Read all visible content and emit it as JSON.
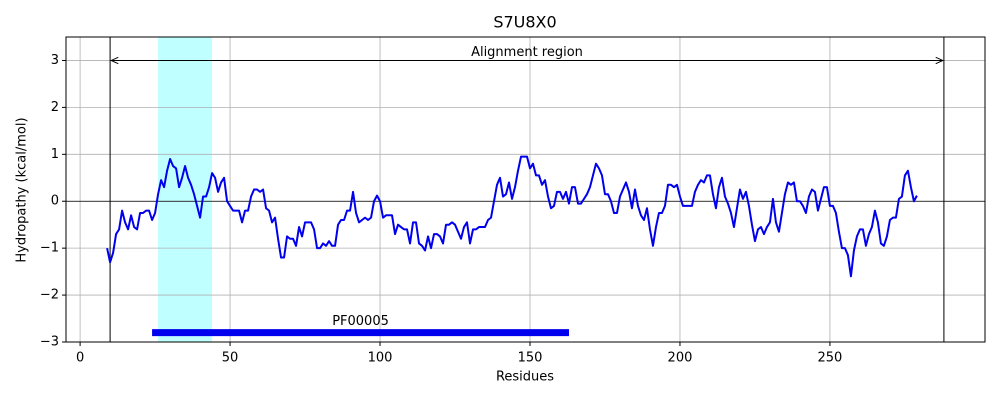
{
  "chart_data": {
    "type": "line",
    "title": "S7U8X0",
    "xlabel": "Residues",
    "ylabel": "Hydropathy (kcal/mol)",
    "xlim": [
      -4.7,
      301.7
    ],
    "ylim": [
      -3,
      3.5
    ],
    "xticks": [
      0,
      50,
      100,
      150,
      200,
      250
    ],
    "yticks": [
      {
        "value": -3,
        "label": "−3"
      },
      {
        "value": -2,
        "label": "−2"
      },
      {
        "value": -1,
        "label": "−1"
      },
      0,
      1,
      2,
      3
    ],
    "grid": true,
    "hline": 0,
    "vlines": [
      10,
      288
    ],
    "span": {
      "start": 26,
      "end": 44,
      "color": "#c0ffff"
    },
    "domain": {
      "label": "PF00005",
      "start": 24,
      "end": 163,
      "y": -2.8,
      "color": "#0000ee"
    },
    "annotation": {
      "text": "Alignment region",
      "start": 10,
      "end": 288,
      "y": 3
    },
    "series": [
      {
        "color": "#0000ee",
        "x": [
          9,
          10,
          11,
          12,
          13,
          14,
          15,
          16,
          17,
          18,
          19,
          20,
          21,
          22,
          23,
          24,
          25,
          26,
          27,
          28,
          29,
          30,
          31,
          32,
          33,
          34,
          35,
          36,
          37,
          38,
          39,
          40,
          41,
          42,
          43,
          44,
          45,
          46,
          47,
          48,
          49,
          50,
          51,
          52,
          53,
          54,
          55,
          56,
          57,
          58,
          59,
          60,
          61,
          62,
          63,
          64,
          65,
          66,
          67,
          68,
          69,
          70,
          71,
          72,
          73,
          74,
          75,
          76,
          77,
          78,
          79,
          80,
          81,
          82,
          83,
          84,
          85,
          86,
          87,
          88,
          89,
          90,
          91,
          92,
          93,
          94,
          95,
          96,
          97,
          98,
          99,
          100,
          101,
          102,
          103,
          104,
          105,
          106,
          107,
          108,
          109,
          110,
          111,
          112,
          113,
          114,
          115,
          116,
          117,
          118,
          119,
          120,
          121,
          122,
          123,
          124,
          125,
          126,
          127,
          128,
          129,
          130,
          131,
          132,
          133,
          134,
          135,
          136,
          137,
          138,
          139,
          140,
          141,
          142,
          143,
          144,
          145,
          146,
          147,
          148,
          149,
          150,
          151,
          152,
          153,
          154,
          155,
          156,
          157,
          158,
          159,
          160,
          161,
          162,
          163,
          164,
          165,
          166,
          167,
          168,
          169,
          170,
          171,
          172,
          173,
          174,
          175,
          176,
          177,
          178,
          179,
          180,
          181,
          182,
          183,
          184,
          185,
          186,
          187,
          188,
          189,
          190,
          191,
          192,
          193,
          194,
          195,
          196,
          197,
          198,
          199,
          200,
          201,
          202,
          203,
          204,
          205,
          206,
          207,
          208,
          209,
          210,
          211,
          212,
          213,
          214,
          215,
          216,
          217,
          218,
          219,
          220,
          221,
          222,
          223,
          224,
          225,
          226,
          227,
          228,
          229,
          230,
          231,
          232,
          233,
          234,
          235,
          236,
          237,
          238,
          239,
          240,
          241,
          242,
          243,
          244,
          245,
          246,
          247,
          248,
          249,
          250,
          251,
          252,
          253,
          254,
          255,
          256,
          257,
          258,
          259,
          260,
          261,
          262,
          263,
          264,
          265,
          266,
          267,
          268,
          269,
          270,
          271,
          272,
          273,
          274,
          275,
          276,
          277,
          278,
          279
        ],
        "values": [
          -1.0,
          -1.3,
          -1.1,
          -0.7,
          -0.6,
          -0.2,
          -0.45,
          -0.6,
          -0.3,
          -0.55,
          -0.6,
          -0.25,
          -0.25,
          -0.2,
          -0.2,
          -0.4,
          -0.25,
          0.15,
          0.45,
          0.3,
          0.65,
          0.9,
          0.75,
          0.7,
          0.3,
          0.5,
          0.75,
          0.5,
          0.35,
          0.15,
          -0.1,
          -0.35,
          0.1,
          0.1,
          0.3,
          0.6,
          0.5,
          0.2,
          0.4,
          0.5,
          0.0,
          -0.1,
          -0.2,
          -0.2,
          -0.2,
          -0.45,
          -0.2,
          -0.2,
          0.1,
          0.25,
          0.25,
          0.2,
          0.25,
          -0.15,
          -0.2,
          -0.45,
          -0.35,
          -0.8,
          -1.2,
          -1.2,
          -0.75,
          -0.8,
          -0.8,
          -0.95,
          -0.55,
          -0.75,
          -0.45,
          -0.45,
          -0.45,
          -0.6,
          -1.0,
          -1.0,
          -0.9,
          -0.95,
          -0.85,
          -0.95,
          -0.95,
          -0.5,
          -0.4,
          -0.4,
          -0.2,
          -0.2,
          0.2,
          -0.25,
          -0.45,
          -0.4,
          -0.35,
          -0.4,
          -0.35,
          0.0,
          0.12,
          0.0,
          -0.35,
          -0.3,
          -0.3,
          -0.3,
          -0.7,
          -0.5,
          -0.55,
          -0.6,
          -0.6,
          -0.9,
          -0.45,
          -0.45,
          -0.9,
          -0.95,
          -1.05,
          -0.75,
          -1.0,
          -0.7,
          -0.7,
          -0.75,
          -0.9,
          -0.5,
          -0.5,
          -0.45,
          -0.5,
          -0.65,
          -0.8,
          -0.55,
          -0.45,
          -0.9,
          -0.6,
          -0.6,
          -0.55,
          -0.55,
          -0.55,
          -0.4,
          -0.35,
          0.0,
          0.35,
          0.5,
          0.1,
          0.15,
          0.4,
          0.05,
          0.3,
          0.65,
          0.95,
          0.95,
          0.95,
          0.7,
          0.8,
          0.55,
          0.55,
          0.35,
          0.45,
          0.1,
          -0.15,
          -0.1,
          0.2,
          0.2,
          0.05,
          0.2,
          -0.05,
          0.3,
          0.3,
          -0.05,
          -0.05,
          0.05,
          0.15,
          0.3,
          0.55,
          0.8,
          0.7,
          0.55,
          0.15,
          0.15,
          0.0,
          -0.25,
          -0.25,
          0.1,
          0.25,
          0.4,
          0.2,
          -0.15,
          0.25,
          -0.1,
          -0.3,
          -0.4,
          -0.15,
          -0.6,
          -0.95,
          -0.55,
          -0.25,
          -0.25,
          -0.1,
          0.35,
          0.35,
          0.3,
          0.35,
          0.1,
          -0.1,
          -0.1,
          -0.1,
          -0.1,
          0.2,
          0.35,
          0.45,
          0.4,
          0.55,
          0.55,
          0.15,
          -0.15,
          0.3,
          0.5,
          0.1,
          -0.05,
          -0.25,
          -0.55,
          -0.15,
          0.25,
          0.05,
          0.2,
          -0.1,
          -0.5,
          -0.85,
          -0.6,
          -0.55,
          -0.7,
          -0.55,
          -0.45,
          0.05,
          -0.45,
          -0.65,
          -0.25,
          0.15,
          0.4,
          0.35,
          0.4,
          0.0,
          0.0,
          -0.1,
          -0.25,
          0.1,
          0.25,
          0.2,
          -0.2,
          0.05,
          0.3,
          0.3,
          -0.1,
          -0.1,
          -0.25,
          -0.65,
          -1.0,
          -1.0,
          -1.15,
          -1.6,
          -1.05,
          -0.75,
          -0.6,
          -0.6,
          -0.95,
          -0.7,
          -0.55,
          -0.2,
          -0.45,
          -0.9,
          -0.95,
          -0.75,
          -0.4,
          -0.35,
          -0.35,
          0.05,
          0.1,
          0.55,
          0.65,
          0.3,
          0.0,
          0.12
        ]
      }
    ]
  }
}
